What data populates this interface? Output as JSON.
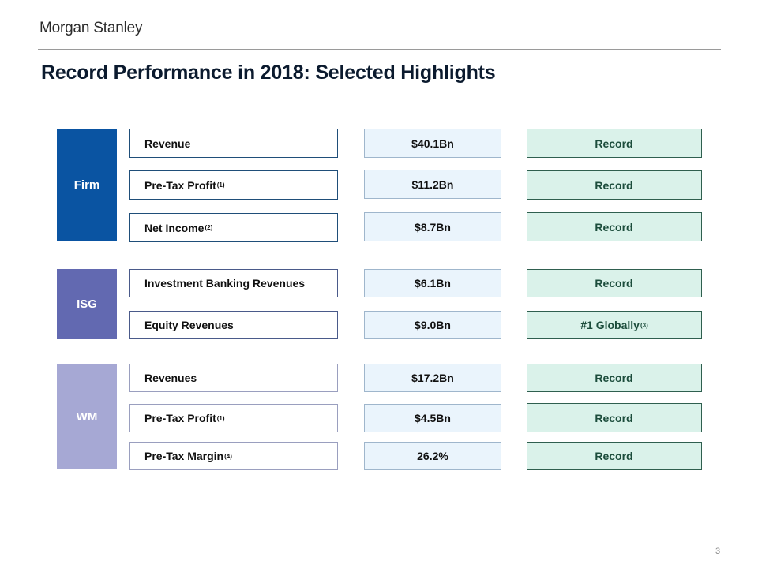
{
  "header": {
    "logo_text": "Morgan Stanley"
  },
  "title": "Record Performance in 2018: Selected Highlights",
  "colors": {
    "firm": "#0a54a2",
    "isg": "#6269b1",
    "wm": "#a6a8d4",
    "value_bg": "#eaf4fc",
    "note_bg": "#daf2ea"
  },
  "segments": [
    {
      "label": "Firm",
      "rows": [
        {
          "metric": "Revenue",
          "footnote": "",
          "value": "$40.1Bn",
          "note": "Record",
          "note_footnote": ""
        },
        {
          "metric": "Pre-Tax Profit",
          "footnote": "(1)",
          "value": "$11.2Bn",
          "note": "Record",
          "note_footnote": ""
        },
        {
          "metric": "Net Income",
          "footnote": "(2)",
          "value": "$8.7Bn",
          "note": "Record",
          "note_footnote": ""
        }
      ]
    },
    {
      "label": "ISG",
      "rows": [
        {
          "metric": "Investment Banking Revenues",
          "footnote": "",
          "value": "$6.1Bn",
          "note": "Record",
          "note_footnote": ""
        },
        {
          "metric": "Equity Revenues",
          "footnote": "",
          "value": "$9.0Bn",
          "note": "#1 Globally",
          "note_footnote": "(3)"
        }
      ]
    },
    {
      "label": "WM",
      "rows": [
        {
          "metric": "Revenues",
          "footnote": "",
          "value": "$17.2Bn",
          "note": "Record",
          "note_footnote": ""
        },
        {
          "metric": "Pre-Tax Profit",
          "footnote": "(1)",
          "value": "$4.5Bn",
          "note": "Record",
          "note_footnote": ""
        },
        {
          "metric": "Pre-Tax Margin",
          "footnote": "(4)",
          "value": "26.2%",
          "note": "Record",
          "note_footnote": ""
        }
      ]
    }
  ],
  "page_number": "3"
}
